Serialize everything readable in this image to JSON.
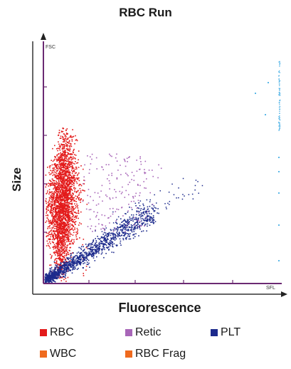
{
  "chart_data": {
    "type": "scatter",
    "title": "RBC Run",
    "xlabel": "Fluorescence",
    "ylabel": "Size",
    "x_axis_tag": "SFL",
    "y_axis_tag": "FSC",
    "grid": false,
    "legend_position": "bottom",
    "axis_color": "#6b2a73",
    "series": [
      {
        "name": "RBC",
        "color": "#e31b1b",
        "points": 2600
      },
      {
        "name": "Retic",
        "color": "#a866b8",
        "points": 180
      },
      {
        "name": "PLT",
        "color": "#1c2a8c",
        "points": 1300
      },
      {
        "name": "WBC",
        "color": "#ef6a1e",
        "points": 0
      },
      {
        "name": "RBC Frag",
        "color": "#ef6a1e",
        "points": 0
      }
    ],
    "outlier_color": "#5bb8e8"
  }
}
